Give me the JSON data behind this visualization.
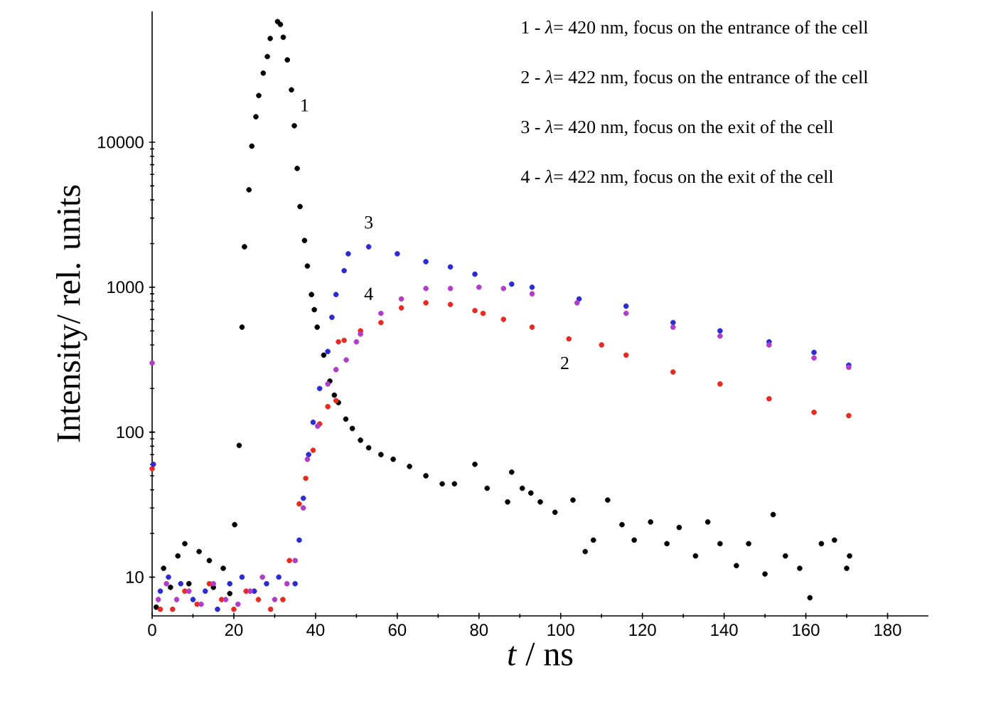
{
  "chart_data": {
    "type": "scatter",
    "xlabel": "*t* / ns",
    "ylabel": "Intensity/ rel. units",
    "log": "y",
    "marker": "circle",
    "grid": false,
    "xlim": [
      0,
      190
    ],
    "ylim": [
      5.4,
      80000
    ],
    "xticks": [
      0,
      20,
      40,
      60,
      80,
      100,
      120,
      140,
      160,
      180
    ],
    "yticks": [
      10,
      100,
      1000,
      10000
    ],
    "annotations": [
      "1 - *λ*= 420 nm, focus on the entrance of the cell",
      "2 - *λ*= 422 nm, focus on the entrance of the cell",
      "3 - *λ*= 420 nm, focus on the exit of the cell",
      "4 - *λ*= 422 nm, focus on the exit of the cell"
    ],
    "series": [
      {
        "name": "1",
        "color": "#000000",
        "x": [
          1,
          2.8,
          4.5,
          6.3,
          8,
          9,
          11.5,
          14,
          15,
          17.4,
          19,
          20.2,
          21.3,
          22,
          22.6,
          23.7,
          24.4,
          25.4,
          26.1,
          27.2,
          28.2,
          28.9,
          30.7,
          31.4,
          32.1,
          33.1,
          34.1,
          34.8,
          35.5,
          36.2,
          37.3,
          38,
          39,
          39.7,
          40.4,
          42,
          43.5,
          44.6,
          45.6,
          47.4,
          49,
          51,
          53,
          56,
          59,
          63,
          67,
          71,
          74,
          79,
          82,
          87,
          88,
          90.6,
          92.7,
          95,
          98.6,
          103,
          106,
          108,
          111.5,
          115,
          118,
          122,
          126,
          129,
          133,
          136,
          139,
          143,
          146,
          150,
          152,
          155,
          158.5,
          161,
          163.8,
          167,
          170,
          170.7
        ],
        "values": [
          6.2,
          11.5,
          8.5,
          14,
          17,
          9,
          15,
          13,
          8.5,
          11.5,
          7.7,
          23,
          81,
          530,
          1900,
          4700,
          9400,
          15000,
          21000,
          30000,
          39000,
          52000,
          68000,
          65000,
          53000,
          37000,
          23000,
          13000,
          6600,
          3600,
          2100,
          1400,
          890,
          700,
          530,
          340,
          225,
          180,
          160,
          123,
          106,
          88,
          78,
          70,
          65,
          58,
          50,
          44,
          44,
          60,
          41,
          33,
          53,
          41,
          38,
          33,
          28,
          34,
          15,
          18,
          34,
          23,
          18,
          24,
          17,
          22,
          14,
          24,
          17,
          12,
          17,
          10.5,
          27,
          14,
          11.5,
          7.2,
          17,
          18,
          11.5,
          14
        ]
      },
      {
        "name": "2",
        "color": "#e8291f",
        "x": [
          0,
          2,
          5,
          8,
          11,
          14,
          17,
          20,
          23,
          26,
          29,
          32,
          33.6,
          36,
          37.6,
          39.4,
          41,
          43,
          45,
          45.6,
          47,
          51,
          56,
          61,
          67,
          73,
          79,
          81,
          86,
          93,
          102,
          110,
          116,
          127.5,
          139,
          151,
          162,
          170.5
        ],
        "values": [
          56,
          6,
          6,
          8,
          6.5,
          9,
          7,
          6,
          8,
          7,
          6,
          7,
          13,
          32,
          48,
          75,
          114,
          150,
          165,
          420,
          430,
          500,
          570,
          720,
          780,
          760,
          690,
          660,
          600,
          530,
          440,
          400,
          340,
          260,
          215,
          170,
          137,
          130
        ]
      },
      {
        "name": "3",
        "color": "#2b2bd0",
        "x": [
          0.3,
          2,
          4,
          7,
          10,
          13,
          16,
          19,
          22,
          25,
          28,
          31,
          35,
          36,
          37,
          38.3,
          39.4,
          41,
          43,
          44,
          45,
          47,
          48,
          53,
          60,
          67,
          73,
          79,
          88,
          93,
          104.5,
          116,
          127.5,
          139,
          151,
          162,
          170.5
        ],
        "values": [
          60,
          8,
          10,
          9,
          7,
          8,
          6,
          9,
          10,
          8,
          9,
          10,
          9,
          18,
          35,
          70,
          117,
          200,
          360,
          620,
          890,
          1300,
          1700,
          1900,
          1700,
          1500,
          1380,
          1230,
          1050,
          1000,
          830,
          740,
          570,
          500,
          420,
          355,
          290
        ]
      },
      {
        "name": "4",
        "color": "#b03cc8",
        "x": [
          0,
          1.5,
          3.5,
          6,
          9,
          12,
          15,
          18,
          21,
          24,
          27,
          30,
          33,
          35,
          37,
          38,
          40.5,
          43,
          45,
          47.5,
          50,
          51,
          56,
          61,
          67,
          73,
          80,
          86,
          93,
          104,
          116,
          127.5,
          139,
          151,
          162,
          170.5
        ],
        "values": [
          300,
          7,
          9,
          7,
          8,
          6.5,
          9,
          7,
          6.5,
          8,
          10,
          7,
          9,
          13,
          30,
          65,
          110,
          215,
          270,
          315,
          420,
          475,
          660,
          830,
          980,
          980,
          1000,
          980,
          900,
          780,
          660,
          530,
          460,
          400,
          325,
          280
        ]
      }
    ]
  }
}
